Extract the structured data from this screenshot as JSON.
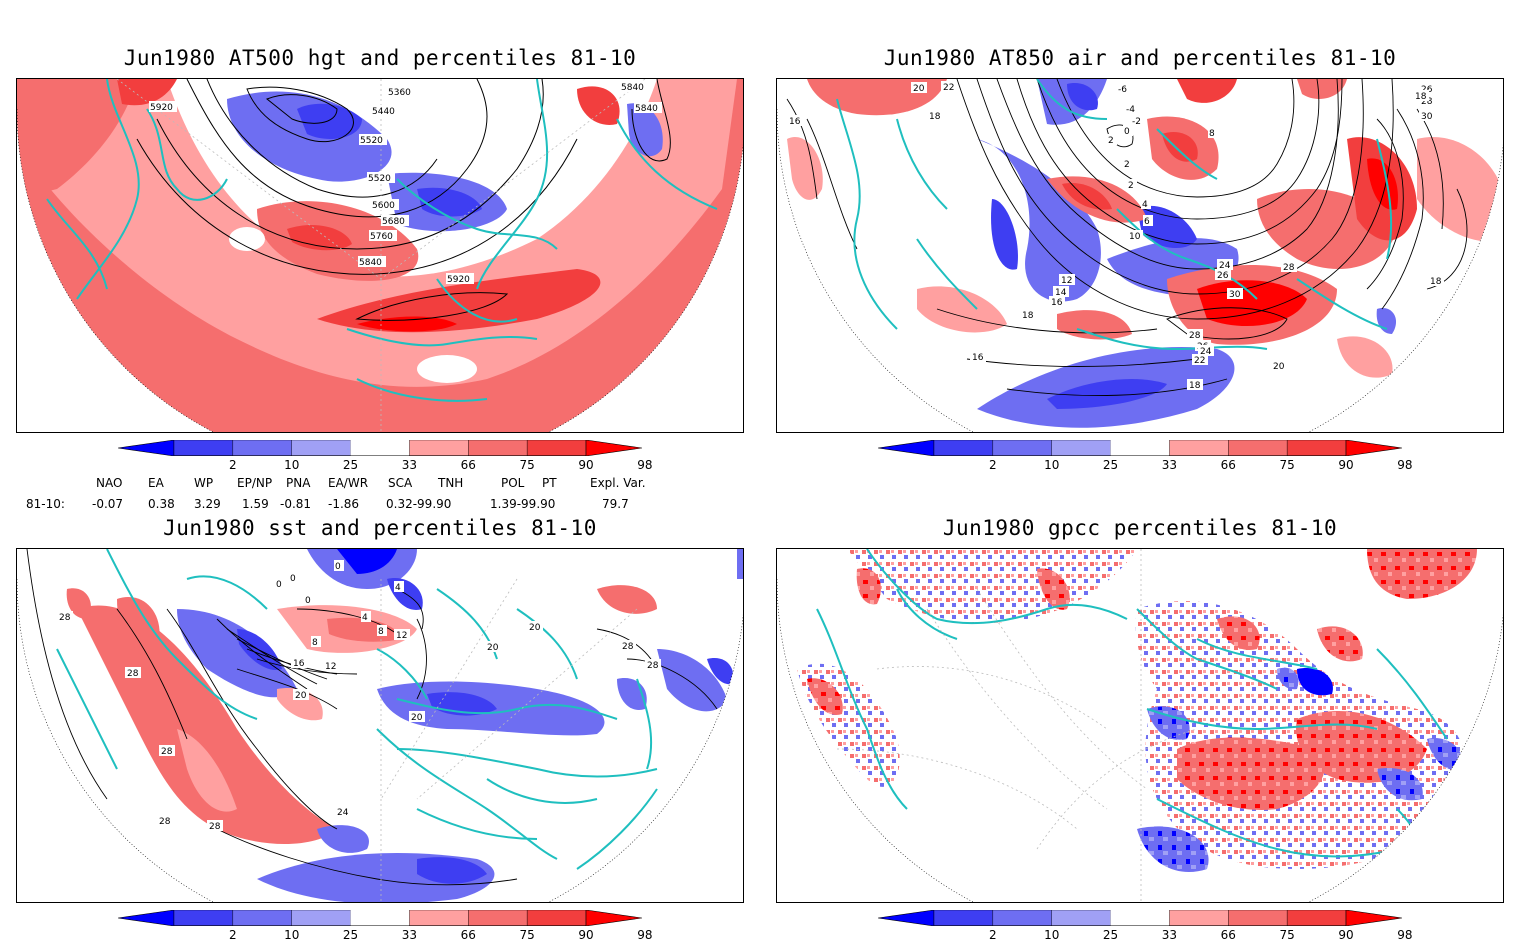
{
  "panels": {
    "p1": {
      "title": "Jun1980 AT500 hgt and percentiles 81-10",
      "contour_labels": [
        "5920",
        "5360",
        "5840",
        "5440",
        "5840",
        "5520",
        "5520",
        "5600",
        "5680",
        "5760",
        "5840",
        "5920"
      ]
    },
    "p2": {
      "title": "Jun1980 AT850 air and percentiles 81-10",
      "contour_labels": [
        "20",
        "22",
        "-6",
        "26",
        "28",
        "18",
        "-4",
        "30",
        "16",
        "18",
        "-2",
        "0",
        "8",
        "2",
        "2",
        "2",
        "4",
        "6",
        "10",
        "12",
        "14",
        "16",
        "24",
        "26",
        "28",
        "30",
        "18",
        "16",
        "28",
        "26",
        "24",
        "22",
        "20",
        "18",
        "18"
      ]
    },
    "p3": {
      "title": "Jun1980 sst and percentiles 81-10",
      "contour_labels": [
        "0",
        "0",
        "0",
        "4",
        "28",
        "0",
        "4",
        "8",
        "12",
        "8",
        "16",
        "12",
        "20",
        "20",
        "20",
        "28",
        "28",
        "20",
        "28",
        "28",
        "24",
        "28",
        "28"
      ]
    },
    "p4": {
      "title": "Jun1980 gpcc percentiles 81-10"
    }
  },
  "colorbar": {
    "labels": [
      "2",
      "10",
      "25",
      "33",
      "66",
      "75",
      "90",
      "98"
    ],
    "colors": [
      "#0000ff",
      "#3e3ef2",
      "#6e6ef2",
      "#a0a0f5",
      "#ffffff",
      "#ffa0a0",
      "#f56e6e",
      "#f23e3e",
      "#ff0000"
    ]
  },
  "teleconnections": {
    "headers": [
      "NAO",
      "EA",
      "WP",
      "EP/NP",
      "PNA",
      "EA/WR",
      "SCA",
      "TNH",
      "POL",
      "PT",
      "Expl. Var."
    ],
    "row_label": "81-10:",
    "values": [
      "-0.07",
      "0.38",
      "3.29",
      "1.59",
      "-0.81",
      "-1.86",
      "0.32-99.90",
      "1.39-99.90",
      "79.7"
    ]
  },
  "colors": {
    "coast": "#1fbfbf",
    "contour": "#000000",
    "grid": "#b0b0b0"
  }
}
